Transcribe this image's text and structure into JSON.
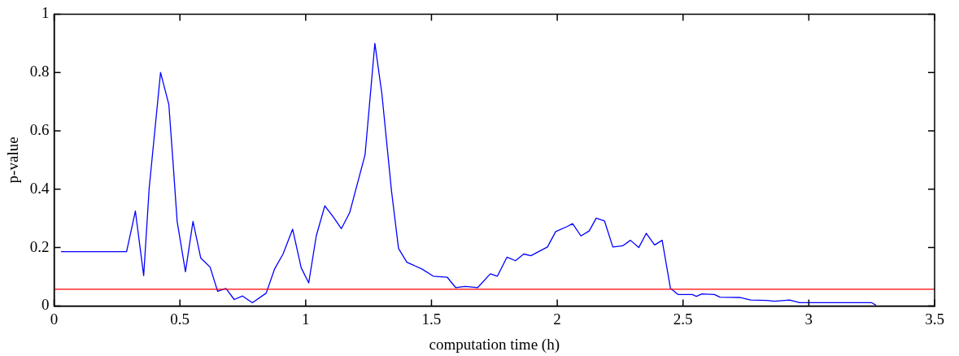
{
  "chart_data": {
    "type": "line",
    "xlabel": "computation time (h)",
    "ylabel": "p-value",
    "xlim": [
      0,
      3.5
    ],
    "xticks": [
      0,
      0.5,
      1,
      1.5,
      2,
      2.5,
      3,
      3.5
    ],
    "ylim": [
      0,
      1
    ],
    "yticks": [
      0,
      0.2,
      0.4,
      0.6,
      0.8,
      1
    ],
    "grid": false,
    "legend": false,
    "marker": "none",
    "line_style": "solid",
    "x": [
      0.027,
      0.288,
      0.323,
      0.356,
      0.378,
      0.423,
      0.456,
      0.472,
      0.489,
      0.522,
      0.552,
      0.583,
      0.62,
      0.65,
      0.683,
      0.716,
      0.749,
      0.788,
      0.843,
      0.876,
      0.91,
      0.948,
      0.982,
      1.012,
      1.042,
      1.076,
      1.109,
      1.142,
      1.175,
      1.236,
      1.275,
      1.303,
      1.341,
      1.369,
      1.402,
      1.463,
      1.507,
      1.563,
      1.596,
      1.634,
      1.684,
      1.734,
      1.762,
      1.8,
      1.834,
      1.867,
      1.895,
      1.961,
      1.994,
      2.039,
      2.061,
      2.094,
      2.127,
      2.155,
      2.188,
      2.221,
      2.26,
      2.291,
      2.324,
      2.354,
      2.387,
      2.417,
      2.45,
      2.481,
      2.537,
      2.553,
      2.575,
      2.625,
      2.647,
      2.725,
      2.769,
      2.835,
      2.863,
      2.924,
      2.963,
      3.25,
      3.267
    ],
    "series": [
      {
        "color": "#0000ff",
        "values": [
          0.186,
          0.186,
          0.325,
          0.104,
          0.405,
          0.8,
          0.69,
          0.5,
          0.29,
          0.117,
          0.29,
          0.164,
          0.133,
          0.05,
          0.06,
          0.022,
          0.034,
          0.011,
          0.044,
          0.126,
          0.178,
          0.263,
          0.131,
          0.079,
          0.24,
          0.343,
          0.306,
          0.265,
          0.32,
          0.518,
          0.9,
          0.726,
          0.395,
          0.197,
          0.15,
          0.126,
          0.102,
          0.098,
          0.063,
          0.067,
          0.063,
          0.11,
          0.102,
          0.167,
          0.155,
          0.178,
          0.172,
          0.202,
          0.255,
          0.272,
          0.282,
          0.24,
          0.257,
          0.301,
          0.291,
          0.202,
          0.206,
          0.225,
          0.2,
          0.249,
          0.209,
          0.225,
          0.06,
          0.039,
          0.039,
          0.033,
          0.041,
          0.039,
          0.03,
          0.029,
          0.02,
          0.019,
          0.016,
          0.02,
          0.011,
          0.011,
          0.003
        ]
      }
    ],
    "ref_lines": [
      {
        "axis": "y",
        "value": 0.057,
        "color": "#ff0000"
      }
    ]
  }
}
